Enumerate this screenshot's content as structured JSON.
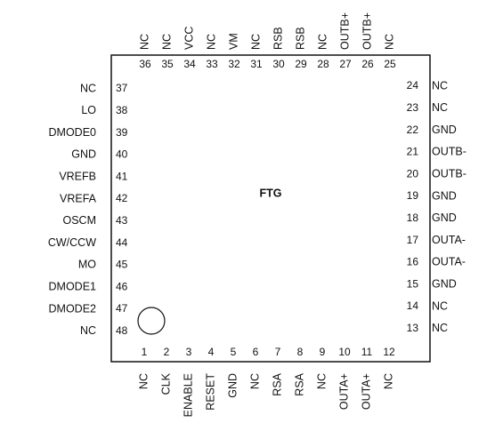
{
  "chip": {
    "label": "FTG"
  },
  "pins": {
    "top": [
      {
        "number": 36,
        "name": "NC"
      },
      {
        "number": 35,
        "name": "NC"
      },
      {
        "number": 34,
        "name": "VCC"
      },
      {
        "number": 33,
        "name": "NC"
      },
      {
        "number": 32,
        "name": "VM"
      },
      {
        "number": 31,
        "name": "NC"
      },
      {
        "number": 30,
        "name": "RSB"
      },
      {
        "number": 29,
        "name": "RSB"
      },
      {
        "number": 28,
        "name": "NC"
      },
      {
        "number": 27,
        "name": "OUTB+"
      },
      {
        "number": 26,
        "name": "OUTB+"
      },
      {
        "number": 25,
        "name": "NC"
      }
    ],
    "bottom": [
      {
        "number": 1,
        "name": "NC"
      },
      {
        "number": 2,
        "name": "CLK"
      },
      {
        "number": 3,
        "name": "ENABLE"
      },
      {
        "number": 4,
        "name": "RESET"
      },
      {
        "number": 5,
        "name": "GND"
      },
      {
        "number": 6,
        "name": "NC"
      },
      {
        "number": 7,
        "name": "RSA"
      },
      {
        "number": 8,
        "name": "RSA"
      },
      {
        "number": 9,
        "name": "NC"
      },
      {
        "number": 10,
        "name": "OUTA+"
      },
      {
        "number": 11,
        "name": "OUTA+"
      },
      {
        "number": 12,
        "name": "NC"
      }
    ],
    "left": [
      {
        "number": 37,
        "name": "NC"
      },
      {
        "number": 38,
        "name": "LO"
      },
      {
        "number": 39,
        "name": "DMODE0"
      },
      {
        "number": 40,
        "name": "GND"
      },
      {
        "number": 41,
        "name": "VREFB"
      },
      {
        "number": 42,
        "name": "VREFA"
      },
      {
        "number": 43,
        "name": "OSCM"
      },
      {
        "number": 44,
        "name": "CW/CCW"
      },
      {
        "number": 45,
        "name": "MO"
      },
      {
        "number": 46,
        "name": "DMODE1"
      },
      {
        "number": 47,
        "name": "DMODE2"
      },
      {
        "number": 48,
        "name": "NC"
      }
    ],
    "right": [
      {
        "number": 24,
        "name": "NC"
      },
      {
        "number": 23,
        "name": "NC"
      },
      {
        "number": 22,
        "name": "GND"
      },
      {
        "number": 21,
        "name": "OUTB-"
      },
      {
        "number": 20,
        "name": "OUTB-"
      },
      {
        "number": 19,
        "name": "GND"
      },
      {
        "number": 18,
        "name": "GND"
      },
      {
        "number": 17,
        "name": "OUTA-"
      },
      {
        "number": 16,
        "name": "OUTA-"
      },
      {
        "number": 15,
        "name": "GND"
      },
      {
        "number": 14,
        "name": "NC"
      },
      {
        "number": 13,
        "name": "NC"
      }
    ]
  }
}
